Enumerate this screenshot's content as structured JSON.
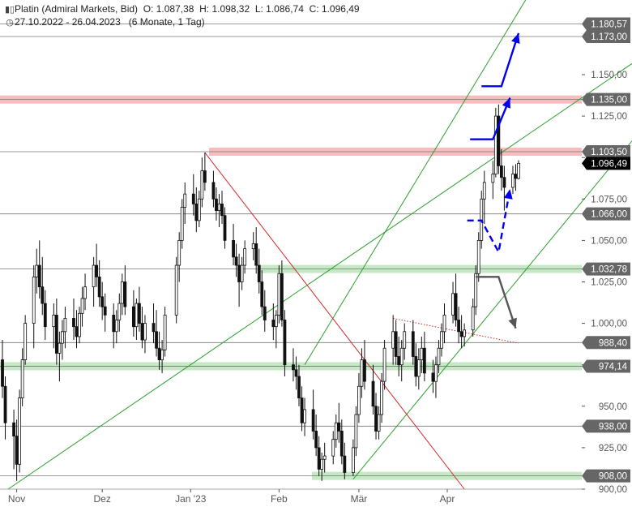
{
  "header": {
    "instrument": "Platin (Admiral Markets, Bid)",
    "open": "O: 1.087,38",
    "high": "H: 1.098,32",
    "low": "L: 1.086,74",
    "close": "C: 1.096,49",
    "range": "27.10.2022 - 26.04.2023",
    "period": "(6 Monate, 1 Tag)",
    "chart_icon": "candlestick-icon",
    "clock_icon": "clock-icon"
  },
  "chart_data": {
    "type": "candlestick",
    "instrument": "Platin (Admiral Markets, Bid)",
    "date_range": [
      "2022-10-27",
      "2023-04-26"
    ],
    "interval": "1 Tag",
    "last": {
      "open": 1087.38,
      "high": 1098.32,
      "low": 1086.74,
      "close": 1096.49
    },
    "ylim": [
      900,
      1195
    ],
    "y_ticks": [
      {
        "value": 900,
        "label": "900,00"
      },
      {
        "value": 925,
        "label": "925,00"
      },
      {
        "value": 950,
        "label": "950,00"
      },
      {
        "value": 975,
        "label": "975,00"
      },
      {
        "value": 1000,
        "label": "1.000,00"
      },
      {
        "value": 1025,
        "label": "1.025,00"
      },
      {
        "value": 1050,
        "label": "1.050,00"
      },
      {
        "value": 1075,
        "label": "1.075,00"
      },
      {
        "value": 1100,
        "label": "1.100,00"
      },
      {
        "value": 1125,
        "label": "1.125,00"
      },
      {
        "value": 1150,
        "label": "1.150,00"
      }
    ],
    "x_ticks": [
      {
        "date": "2022-11-01",
        "label": "Nov"
      },
      {
        "date": "2022-12-01",
        "label": "Dez"
      },
      {
        "date": "2023-01-01",
        "label": "Jan '23"
      },
      {
        "date": "2023-02-01",
        "label": "Feb"
      },
      {
        "date": "2023-03-01",
        "label": "Mär"
      },
      {
        "date": "2023-04-01",
        "label": "Apr"
      }
    ],
    "levels": [
      {
        "value": 1180.57,
        "label": "1.180,57",
        "kind": "line"
      },
      {
        "value": 1173.0,
        "label": "1.173,00",
        "kind": "line"
      },
      {
        "value": 1135.0,
        "label": "1.135,00",
        "kind": "resistance-zone"
      },
      {
        "value": 1103.5,
        "label": "1.103,50",
        "kind": "resistance-zone"
      },
      {
        "value": 1096.49,
        "label": "1.096,49",
        "kind": "current-price"
      },
      {
        "value": 1066.0,
        "label": "1.066,00",
        "kind": "line"
      },
      {
        "value": 1032.78,
        "label": "1.032,78",
        "kind": "support-zone"
      },
      {
        "value": 988.4,
        "label": "988,40",
        "kind": "line"
      },
      {
        "value": 974.14,
        "label": "974,14",
        "kind": "support-zone"
      },
      {
        "value": 938.0,
        "label": "938,00",
        "kind": "line"
      },
      {
        "value": 908.0,
        "label": "908,00",
        "kind": "support-zone"
      }
    ],
    "candles": [
      [
        "2022-10-27",
        978,
        990,
        955,
        962
      ],
      [
        "2022-10-28",
        962,
        968,
        930,
        940
      ],
      [
        "2022-10-31",
        940,
        948,
        912,
        932
      ],
      [
        "2022-11-01",
        932,
        942,
        905,
        915
      ],
      [
        "2022-11-02",
        915,
        960,
        910,
        955
      ],
      [
        "2022-11-03",
        955,
        985,
        950,
        978
      ],
      [
        "2022-11-04",
        978,
        1005,
        975,
        1000
      ],
      [
        "2022-11-07",
        1000,
        1035,
        985,
        1028
      ],
      [
        "2022-11-08",
        1028,
        1045,
        1018,
        1035
      ],
      [
        "2022-11-09",
        1035,
        1050,
        1015,
        1022
      ],
      [
        "2022-11-10",
        1022,
        1040,
        1005,
        1012
      ],
      [
        "2022-11-11",
        1012,
        1020,
        990,
        998
      ],
      [
        "2022-11-14",
        998,
        1012,
        985,
        1005
      ],
      [
        "2022-11-15",
        1005,
        1015,
        975,
        982
      ],
      [
        "2022-11-16",
        982,
        995,
        965,
        988
      ],
      [
        "2022-11-17",
        988,
        1002,
        978,
        995
      ],
      [
        "2022-11-18",
        995,
        1010,
        985,
        1003
      ],
      [
        "2022-11-21",
        1003,
        1015,
        990,
        998
      ],
      [
        "2022-11-22",
        998,
        1008,
        985,
        992
      ],
      [
        "2022-11-23",
        992,
        1010,
        988,
        1006
      ],
      [
        "2022-11-24",
        1006,
        1022,
        998,
        1015
      ],
      [
        "2022-11-25",
        1015,
        1030,
        1008,
        1022
      ],
      [
        "2022-11-28",
        1022,
        1040,
        1010,
        1035
      ],
      [
        "2022-11-29",
        1035,
        1048,
        1022,
        1028
      ],
      [
        "2022-11-30",
        1028,
        1038,
        1010,
        1016
      ],
      [
        "2022-12-01",
        1016,
        1025,
        1002,
        1010
      ],
      [
        "2022-12-02",
        1010,
        1018,
        995,
        1005
      ],
      [
        "2022-12-05",
        1005,
        1012,
        985,
        995
      ],
      [
        "2022-12-06",
        995,
        1008,
        988,
        1002
      ],
      [
        "2022-12-07",
        1002,
        1018,
        995,
        1012
      ],
      [
        "2022-12-08",
        1012,
        1030,
        1005,
        1025
      ],
      [
        "2022-12-09",
        1025,
        1035,
        1005,
        1010
      ],
      [
        "2022-12-12",
        1010,
        1020,
        992,
        998
      ],
      [
        "2022-12-13",
        998,
        1015,
        990,
        1012
      ],
      [
        "2022-12-14",
        1012,
        1022,
        995,
        1000
      ],
      [
        "2022-12-15",
        1000,
        1010,
        985,
        990
      ],
      [
        "2022-12-16",
        990,
        1005,
        982,
        1000
      ],
      [
        "2022-12-19",
        1000,
        1012,
        988,
        995
      ],
      [
        "2022-12-20",
        995,
        1008,
        980,
        985
      ],
      [
        "2022-12-21",
        985,
        995,
        972,
        978
      ],
      [
        "2022-12-22",
        978,
        990,
        970,
        984
      ],
      [
        "2022-12-23",
        984,
        1010,
        980,
        1005
      ],
      [
        "2022-12-27",
        1005,
        1040,
        1000,
        1035
      ],
      [
        "2022-12-28",
        1035,
        1055,
        1025,
        1050
      ],
      [
        "2022-12-29",
        1050,
        1075,
        1045,
        1070
      ],
      [
        "2022-12-30",
        1070,
        1085,
        1060,
        1078
      ],
      [
        "2023-01-02",
        1078,
        1090,
        1065,
        1072
      ],
      [
        "2023-01-03",
        1072,
        1082,
        1055,
        1062
      ],
      [
        "2023-01-04",
        1062,
        1080,
        1058,
        1075
      ],
      [
        "2023-01-05",
        1075,
        1100,
        1070,
        1092
      ],
      [
        "2023-01-06",
        1092,
        1103,
        1080,
        1085
      ],
      [
        "2023-01-09",
        1085,
        1092,
        1070,
        1075
      ],
      [
        "2023-01-10",
        1075,
        1082,
        1062,
        1068
      ],
      [
        "2023-01-11",
        1068,
        1078,
        1058,
        1072
      ],
      [
        "2023-01-12",
        1072,
        1080,
        1060,
        1065
      ],
      [
        "2023-01-13",
        1065,
        1070,
        1045,
        1050
      ],
      [
        "2023-01-16",
        1050,
        1060,
        1035,
        1040
      ],
      [
        "2023-01-17",
        1040,
        1048,
        1028,
        1035
      ],
      [
        "2023-01-18",
        1035,
        1042,
        1010,
        1025
      ],
      [
        "2023-01-19",
        1025,
        1040,
        1020,
        1035
      ],
      [
        "2023-01-20",
        1035,
        1050,
        1030,
        1045
      ],
      [
        "2023-01-23",
        1045,
        1055,
        1038,
        1048
      ],
      [
        "2023-01-24",
        1048,
        1058,
        1030,
        1035
      ],
      [
        "2023-01-25",
        1035,
        1045,
        1018,
        1025
      ],
      [
        "2023-01-26",
        1025,
        1032,
        1005,
        1010
      ],
      [
        "2023-01-27",
        1010,
        1020,
        995,
        1002
      ],
      [
        "2023-01-30",
        1002,
        1012,
        990,
        998
      ],
      [
        "2023-01-31",
        998,
        1008,
        985,
        1005
      ],
      [
        "2023-02-01",
        1005,
        1035,
        1000,
        1030
      ],
      [
        "2023-02-02",
        1030,
        1038,
        998,
        1002
      ],
      [
        "2023-02-03",
        1002,
        1008,
        968,
        975
      ],
      [
        "2023-02-06",
        975,
        985,
        965,
        972
      ],
      [
        "2023-02-07",
        972,
        980,
        960,
        968
      ],
      [
        "2023-02-08",
        968,
        975,
        950,
        955
      ],
      [
        "2023-02-09",
        955,
        962,
        935,
        940
      ],
      [
        "2023-02-10",
        940,
        955,
        932,
        948
      ],
      [
        "2023-02-13",
        948,
        960,
        930,
        935
      ],
      [
        "2023-02-14",
        935,
        945,
        920,
        925
      ],
      [
        "2023-02-15",
        925,
        932,
        908,
        912
      ],
      [
        "2023-02-16",
        912,
        922,
        905,
        918
      ],
      [
        "2023-02-17",
        918,
        928,
        910,
        920
      ],
      [
        "2023-02-20",
        920,
        935,
        915,
        930
      ],
      [
        "2023-02-21",
        930,
        945,
        925,
        940
      ],
      [
        "2023-02-22",
        940,
        952,
        928,
        935
      ],
      [
        "2023-02-23",
        935,
        942,
        915,
        920
      ],
      [
        "2023-02-24",
        920,
        928,
        906,
        910
      ],
      [
        "2023-02-27",
        910,
        930,
        908,
        925
      ],
      [
        "2023-02-28",
        925,
        950,
        920,
        945
      ],
      [
        "2023-03-01",
        945,
        970,
        940,
        962
      ],
      [
        "2023-03-02",
        962,
        985,
        955,
        978
      ],
      [
        "2023-03-03",
        978,
        990,
        960,
        965
      ],
      [
        "2023-03-06",
        965,
        975,
        945,
        950
      ],
      [
        "2023-03-07",
        950,
        958,
        930,
        935
      ],
      [
        "2023-03-08",
        935,
        950,
        930,
        945
      ],
      [
        "2023-03-09",
        945,
        970,
        940,
        965
      ],
      [
        "2023-03-10",
        965,
        990,
        960,
        985
      ],
      [
        "2023-03-13",
        985,
        1005,
        975,
        995
      ],
      [
        "2023-03-14",
        995,
        1002,
        975,
        980
      ],
      [
        "2023-03-15",
        980,
        992,
        968,
        975
      ],
      [
        "2023-03-16",
        975,
        990,
        965,
        985
      ],
      [
        "2023-03-17",
        985,
        1000,
        978,
        995
      ],
      [
        "2023-03-20",
        995,
        1002,
        975,
        980
      ],
      [
        "2023-03-21",
        980,
        988,
        962,
        968
      ],
      [
        "2023-03-22",
        968,
        985,
        960,
        978
      ],
      [
        "2023-03-23",
        978,
        992,
        970,
        985
      ],
      [
        "2023-03-24",
        985,
        995,
        965,
        970
      ],
      [
        "2023-03-27",
        970,
        978,
        958,
        965
      ],
      [
        "2023-03-28",
        965,
        980,
        955,
        975
      ],
      [
        "2023-03-29",
        975,
        990,
        970,
        985
      ],
      [
        "2023-03-30",
        985,
        1000,
        980,
        995
      ],
      [
        "2023-03-31",
        995,
        1012,
        988,
        1005
      ],
      [
        "2023-04-03",
        1005,
        1025,
        1000,
        1018
      ],
      [
        "2023-04-04",
        1018,
        1030,
        998,
        1002
      ],
      [
        "2023-04-05",
        1002,
        1010,
        988,
        995
      ],
      [
        "2023-04-06",
        995,
        1005,
        985,
        992
      ],
      [
        "2023-04-07",
        992,
        1000,
        986,
        996
      ],
      [
        "2023-04-10",
        996,
        1015,
        992,
        1010
      ],
      [
        "2023-04-11",
        1010,
        1035,
        1005,
        1030
      ],
      [
        "2023-04-12",
        1030,
        1055,
        1025,
        1050
      ],
      [
        "2023-04-13",
        1050,
        1080,
        1045,
        1075
      ],
      [
        "2023-04-14",
        1075,
        1092,
        1060,
        1085
      ],
      [
        "2023-04-17",
        1085,
        1098,
        1075,
        1090
      ],
      [
        "2023-04-18",
        1090,
        1130,
        1088,
        1125
      ],
      [
        "2023-04-19",
        1125,
        1132,
        1090,
        1095
      ],
      [
        "2023-04-20",
        1095,
        1105,
        1080,
        1088
      ],
      [
        "2023-04-21",
        1088,
        1095,
        1068,
        1082
      ],
      [
        "2023-04-24",
        1082,
        1095,
        1078,
        1090
      ],
      [
        "2023-04-25",
        1090,
        1096,
        1080,
        1087.38
      ],
      [
        "2023-04-26",
        1087.38,
        1098.32,
        1086.74,
        1096.49
      ]
    ],
    "trendlines": [
      {
        "name": "channel-upper",
        "color": "#2ca02c",
        "from": [
          "2022-10-29",
          900
        ],
        "to": [
          "2023-04-26",
          1110
        ]
      },
      {
        "name": "channel-middle",
        "color": "#2ca02c",
        "from": [
          "2023-02-10",
          975
        ],
        "to": [
          "2023-04-26",
          1188
        ]
      },
      {
        "name": "channel-lower",
        "color": "#2ca02c",
        "from": [
          "2023-02-27",
          906
        ],
        "to": [
          "2023-04-26",
          1027
        ]
      },
      {
        "name": "downtrend",
        "color": "#d62728",
        "from": [
          "2023-01-06",
          1103
        ],
        "to": [
          "2023-04-07",
          900
        ]
      },
      {
        "name": "dotted-resistance",
        "color": "#d62728",
        "style": "dotted",
        "from": [
          "2023-03-13",
          1003
        ],
        "to": [
          "2023-04-26",
          988
        ]
      }
    ],
    "arrows": [
      {
        "name": "scenario-up-2",
        "color": "#0000ee",
        "style": "solid",
        "points": [
          [
            "2023-04-13",
            1143
          ],
          [
            "2023-04-20",
            1143
          ],
          [
            "2023-04-26",
            1175
          ]
        ]
      },
      {
        "name": "scenario-up-1",
        "color": "#0000ee",
        "style": "solid",
        "points": [
          [
            "2023-04-09",
            1111
          ],
          [
            "2023-04-17",
            1111
          ],
          [
            "2023-04-23",
            1136
          ]
        ]
      },
      {
        "name": "scenario-pullback",
        "color": "#0000ee",
        "style": "dashed",
        "points": [
          [
            "2023-04-08",
            1062
          ],
          [
            "2023-04-13",
            1062
          ],
          [
            "2023-04-19",
            1043
          ],
          [
            "2023-04-23",
            1081
          ]
        ]
      },
      {
        "name": "scenario-down",
        "color": "#555555",
        "style": "solid",
        "points": [
          [
            "2023-04-11",
            1028
          ],
          [
            "2023-04-19",
            1028
          ],
          [
            "2023-04-25",
            997
          ]
        ]
      }
    ]
  }
}
